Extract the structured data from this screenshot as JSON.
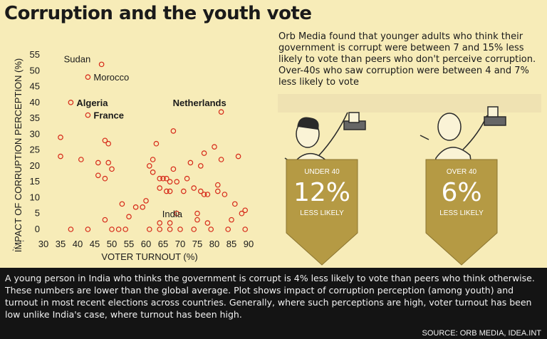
{
  "title": "Corruption and the youth vote",
  "intro": "Orb Media found that younger adults who think their government is corrupt were between 7 and 15% less likely to vote than peers who don't perceive corruption. Over-40s who saw corruption were between 4 and 7% less likely to vote",
  "badges": [
    {
      "top": "UNDER 40",
      "value": "12%",
      "bottom": "LESS LIKELY"
    },
    {
      "top": "OVER 40",
      "value": "6%",
      "bottom": "LESS LIKELY"
    }
  ],
  "footer": "A young person in India who thinks the government is corrupt is 4% less likely to vote than peers who think otherwise. These numbers are lower than the global average. Plot shows impact of corruption perception (among youth) and turnout in most recent elections across countries. Generally, where such perceptions are high, voter turnout has been low unlike India's case, where turnout has been high.",
  "source": "SOURCE: ORB MEDIA, IDEA.INT",
  "colors": {
    "marker": "#d62818",
    "badge": "#b59a44",
    "footer_bg": "#141414",
    "background": "#f7ecb8"
  },
  "chart_data": {
    "type": "scatter",
    "xlabel": "VOTER TURNOUT (%)",
    "ylabel": "IMPACT OF CORRUPTION PERCEPTION (%)",
    "xlim": [
      30,
      90
    ],
    "ylim": [
      0,
      55
    ],
    "xticks": [
      30,
      35,
      40,
      45,
      50,
      55,
      60,
      65,
      70,
      75,
      80,
      85,
      90
    ],
    "yticks": [
      0,
      5,
      10,
      15,
      20,
      25,
      30,
      35,
      40,
      45,
      50,
      55
    ],
    "grid": false,
    "annotations": [
      {
        "label": "Sudan",
        "x": 47,
        "y": 52
      },
      {
        "label": "Morocco",
        "x": 43,
        "y": 48
      },
      {
        "label": "Algeria",
        "x": 38,
        "y": 40
      },
      {
        "label": "France",
        "x": 43,
        "y": 36
      },
      {
        "label": "Netherlands",
        "x": 82,
        "y": 37
      },
      {
        "label": "India",
        "x": 66,
        "y": 4
      }
    ],
    "points": [
      [
        47,
        52
      ],
      [
        43,
        48
      ],
      [
        38,
        40
      ],
      [
        43,
        36
      ],
      [
        82,
        37
      ],
      [
        35,
        29
      ],
      [
        35,
        23
      ],
      [
        38,
        0
      ],
      [
        41,
        22
      ],
      [
        43,
        0
      ],
      [
        46,
        21
      ],
      [
        46,
        17
      ],
      [
        48,
        16
      ],
      [
        48,
        28
      ],
      [
        49,
        27
      ],
      [
        48,
        3
      ],
      [
        49,
        21
      ],
      [
        50,
        0
      ],
      [
        50,
        19
      ],
      [
        52,
        0
      ],
      [
        53,
        8
      ],
      [
        54,
        0
      ],
      [
        55,
        4
      ],
      [
        57,
        7
      ],
      [
        59,
        7
      ],
      [
        60,
        9
      ],
      [
        61,
        0
      ],
      [
        61,
        20
      ],
      [
        62,
        22
      ],
      [
        62,
        18
      ],
      [
        63,
        27
      ],
      [
        64,
        16
      ],
      [
        64,
        13
      ],
      [
        64,
        2
      ],
      [
        64,
        0
      ],
      [
        65,
        16
      ],
      [
        66,
        16
      ],
      [
        66,
        12
      ],
      [
        67,
        15
      ],
      [
        67,
        12
      ],
      [
        67,
        2
      ],
      [
        67,
        0
      ],
      [
        68,
        31
      ],
      [
        68,
        19
      ],
      [
        69,
        15
      ],
      [
        69,
        5
      ],
      [
        70,
        0
      ],
      [
        71,
        12
      ],
      [
        72,
        16
      ],
      [
        73,
        21
      ],
      [
        74,
        13
      ],
      [
        74,
        0
      ],
      [
        75,
        5
      ],
      [
        75,
        3
      ],
      [
        76,
        12
      ],
      [
        76,
        20
      ],
      [
        77,
        11
      ],
      [
        77,
        24
      ],
      [
        78,
        11
      ],
      [
        78,
        2
      ],
      [
        79,
        0
      ],
      [
        80,
        26
      ],
      [
        81,
        14
      ],
      [
        81,
        12
      ],
      [
        82,
        22
      ],
      [
        83,
        11
      ],
      [
        84,
        0
      ],
      [
        85,
        3
      ],
      [
        86,
        8
      ],
      [
        87,
        23
      ],
      [
        88,
        5
      ],
      [
        89,
        6
      ],
      [
        89,
        0
      ]
    ]
  }
}
